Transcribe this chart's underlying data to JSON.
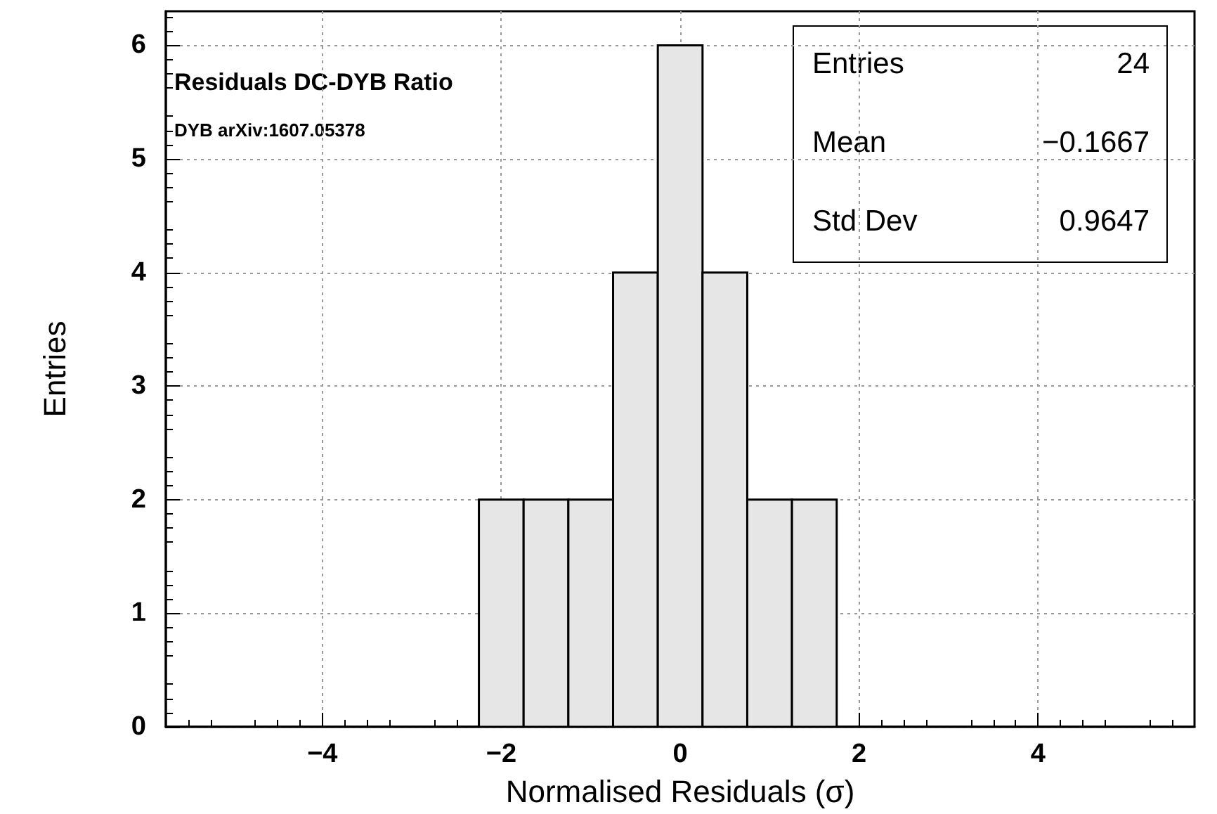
{
  "chart_data": {
    "type": "histogram",
    "title": "Residuals DC-DYB Ratio",
    "subtitle": "DYB arXiv:1607.05378",
    "xlabel": "Normalised Residuals (σ)",
    "ylabel": "Entries",
    "bins": [
      -5.75,
      -5.25,
      -4.75,
      -4.25,
      -3.75,
      -3.25,
      -2.75,
      -2.25,
      -1.75,
      -1.25,
      -0.75,
      -0.25,
      0.25,
      0.75,
      1.25,
      1.75,
      2.25,
      2.75,
      3.25,
      3.75,
      4.25,
      4.75,
      5.25,
      5.75
    ],
    "values": [
      0,
      0,
      0,
      0,
      0,
      0,
      0,
      2,
      2,
      2,
      4,
      6,
      4,
      2,
      2,
      0,
      0,
      0,
      0,
      0,
      0,
      0,
      0
    ],
    "color": "#e6e6e6",
    "xlim": [
      -5.75,
      5.75
    ],
    "xticks": [
      {
        "value": -4,
        "label": "−4"
      },
      {
        "value": -2,
        "label": "−2"
      },
      0,
      2,
      4
    ],
    "ylim": [
      0,
      6.3
    ],
    "yticks": [
      0,
      1,
      2,
      3,
      4,
      5,
      6
    ],
    "grid": true,
    "legend": false,
    "annotations": [
      "Entries",
      "24",
      "Mean",
      "−0.1667",
      "Std Dev",
      "0.9647"
    ]
  }
}
